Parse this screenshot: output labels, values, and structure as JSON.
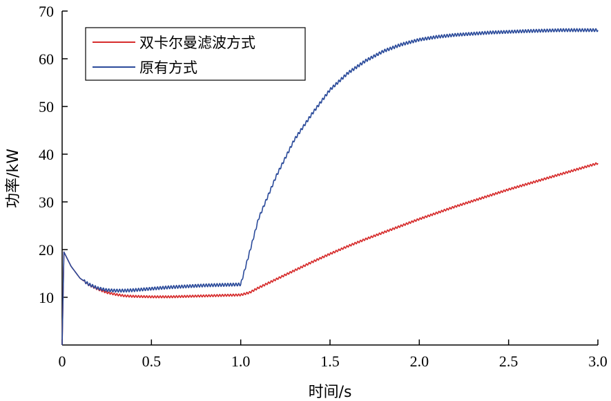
{
  "chart_data": {
    "type": "line",
    "xlabel": "时间/s",
    "ylabel": "功率/kW",
    "xlim": [
      0,
      3.0
    ],
    "ylim": [
      0,
      70
    ],
    "x_ticks": [
      {
        "value": 0,
        "label": "0"
      },
      {
        "value": 0.5,
        "label": "0.5"
      },
      {
        "value": 1.0,
        "label": "1.0"
      },
      {
        "value": 1.5,
        "label": "1.5"
      },
      {
        "value": 2.0,
        "label": "2.0"
      },
      {
        "value": 2.5,
        "label": "2.5"
      },
      {
        "value": 3.0,
        "label": "3.0"
      }
    ],
    "y_ticks": [
      {
        "value": 10,
        "label": "10"
      },
      {
        "value": 20,
        "label": "20"
      },
      {
        "value": 30,
        "label": "30"
      },
      {
        "value": 40,
        "label": "40"
      },
      {
        "value": 50,
        "label": "50"
      },
      {
        "value": 60,
        "label": "60"
      },
      {
        "value": 70,
        "label": "70"
      }
    ],
    "grid": false,
    "legend_position": "top-left",
    "series": [
      {
        "name": "双卡尔曼滤波方式",
        "color": "#d62b2b",
        "x": [
          0,
          0.01,
          0.05,
          0.1,
          0.15,
          0.2,
          0.25,
          0.3,
          0.35,
          0.4,
          0.5,
          0.6,
          0.7,
          0.8,
          0.9,
          1.0,
          1.05,
          1.1,
          1.2,
          1.3,
          1.4,
          1.5,
          1.6,
          1.7,
          1.8,
          1.9,
          2.0,
          2.1,
          2.2,
          2.3,
          2.4,
          2.5,
          2.6,
          2.7,
          2.8,
          2.9,
          3.0
        ],
        "values": [
          0,
          19.5,
          16.5,
          14.0,
          12.6,
          11.7,
          11.0,
          10.6,
          10.3,
          10.2,
          10.1,
          10.1,
          10.2,
          10.3,
          10.4,
          10.5,
          11.0,
          12.0,
          13.8,
          15.6,
          17.4,
          19.1,
          20.7,
          22.2,
          23.6,
          25.0,
          26.4,
          27.7,
          29.0,
          30.2,
          31.4,
          32.6,
          33.7,
          34.8,
          35.9,
          37.0,
          38.1
        ]
      },
      {
        "name": "原有方式",
        "color": "#2a4a9a",
        "x": [
          0,
          0.01,
          0.05,
          0.1,
          0.15,
          0.2,
          0.25,
          0.3,
          0.35,
          0.4,
          0.5,
          0.6,
          0.7,
          0.8,
          0.9,
          1.0,
          1.05,
          1.1,
          1.15,
          1.2,
          1.3,
          1.4,
          1.5,
          1.6,
          1.7,
          1.8,
          1.9,
          2.0,
          2.1,
          2.2,
          2.4,
          2.6,
          2.8,
          3.0
        ],
        "values": [
          0,
          19.5,
          16.5,
          14.0,
          12.7,
          11.9,
          11.5,
          11.4,
          11.4,
          11.5,
          11.8,
          12.1,
          12.3,
          12.5,
          12.6,
          12.7,
          19.5,
          26.5,
          31.0,
          35.5,
          43.0,
          48.5,
          53.5,
          57.0,
          59.6,
          61.6,
          63.0,
          64.0,
          64.6,
          65.0,
          65.5,
          65.8,
          66.0,
          66.0
        ]
      }
    ]
  }
}
